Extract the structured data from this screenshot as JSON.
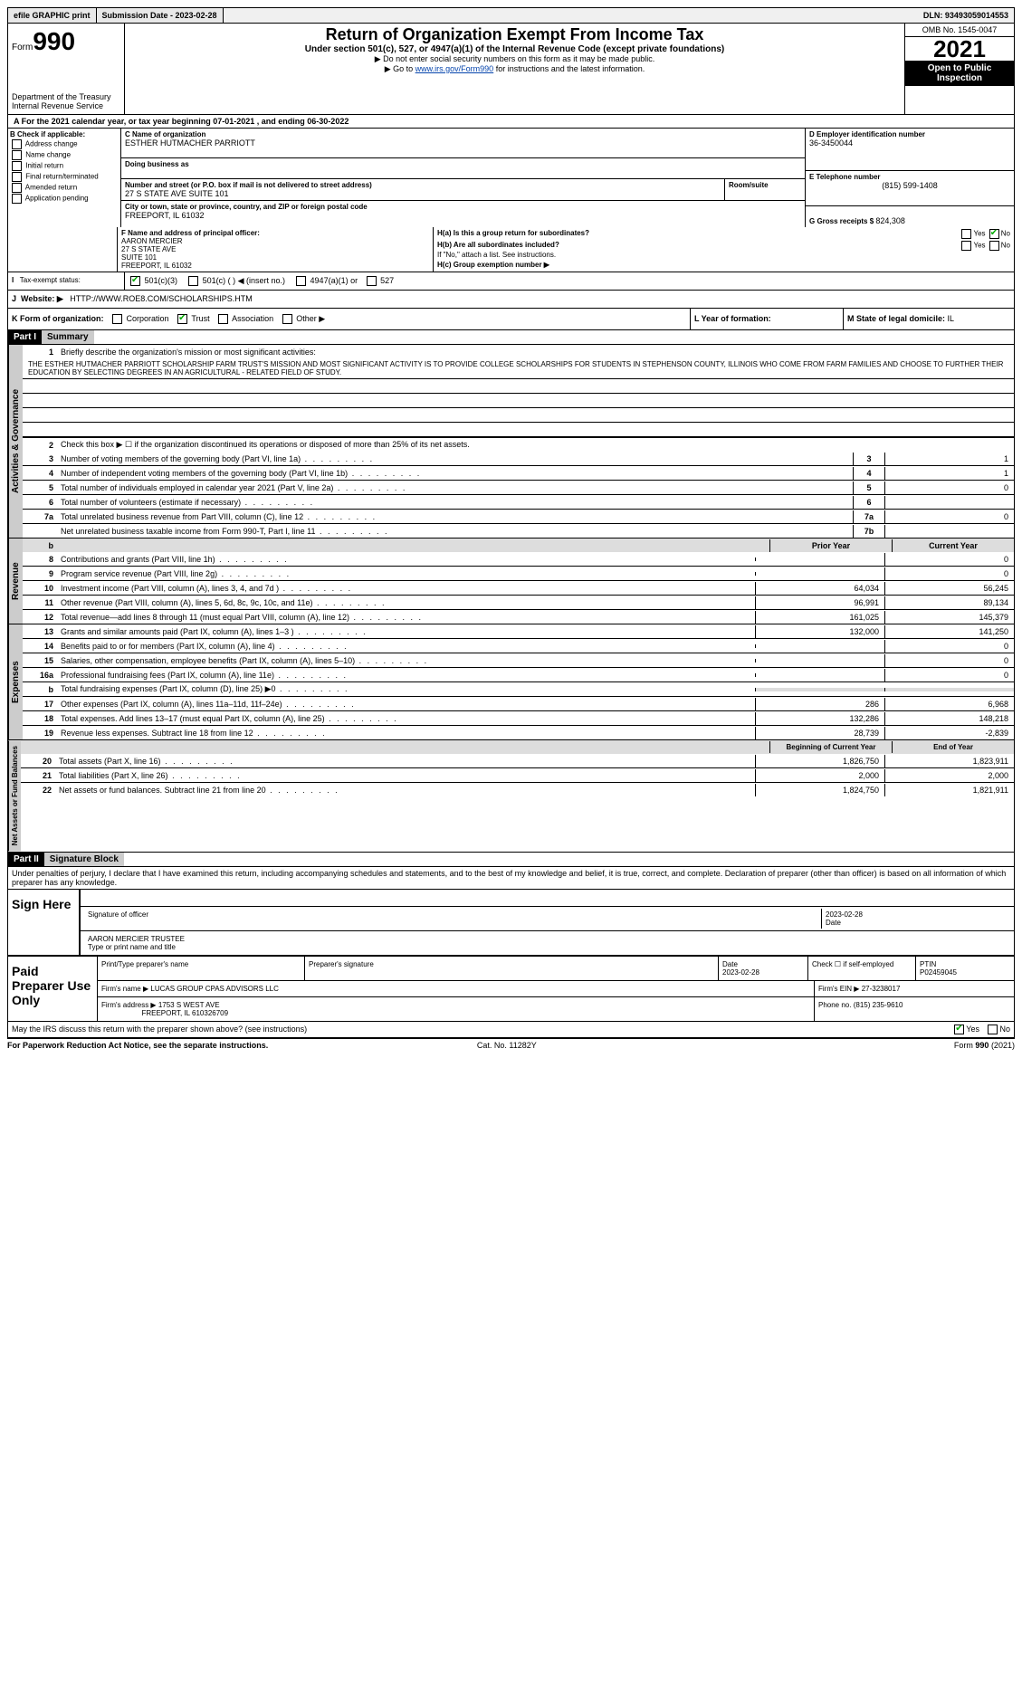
{
  "topbar": {
    "efile": "efile GRAPHIC print",
    "submission": "Submission Date - 2023-02-28",
    "dln": "DLN: 93493059014553"
  },
  "header": {
    "form_word": "Form",
    "form_num": "990",
    "dept": "Department of the Treasury",
    "irs": "Internal Revenue Service",
    "title": "Return of Organization Exempt From Income Tax",
    "subtitle": "Under section 501(c), 527, or 4947(a)(1) of the Internal Revenue Code (except private foundations)",
    "note1": "Do not enter social security numbers on this form as it may be made public.",
    "note2_pre": "Go to ",
    "note2_link": "www.irs.gov/Form990",
    "note2_post": " for instructions and the latest information.",
    "omb": "OMB No. 1545-0047",
    "year": "2021",
    "inspect": "Open to Public Inspection"
  },
  "row_a": "For the 2021 calendar year, or tax year beginning 07-01-2021   , and ending 06-30-2022",
  "box_b": {
    "title": "B Check if applicable:",
    "items": [
      "Address change",
      "Name change",
      "Initial return",
      "Final return/terminated",
      "Amended return",
      "Application pending"
    ]
  },
  "box_c": {
    "lbl_name": "C Name of organization",
    "org": "ESTHER HUTMACHER PARRIOTT",
    "dba_lbl": "Doing business as",
    "dba": "",
    "addr_lbl": "Number and street (or P.O. box if mail is not delivered to street address)",
    "addr": "27 S STATE AVE SUITE 101",
    "room_lbl": "Room/suite",
    "room": "",
    "city_lbl": "City or town, state or province, country, and ZIP or foreign postal code",
    "city": "FREEPORT, IL  61032"
  },
  "box_d": {
    "lbl": "D Employer identification number",
    "val": "36-3450044"
  },
  "box_e": {
    "lbl": "E Telephone number",
    "val": "(815) 599-1408"
  },
  "box_g": {
    "lbl": "G Gross receipts $",
    "val": "824,308"
  },
  "box_f": {
    "lbl": "F  Name and address of principal officer:",
    "name": "AARON MERCIER",
    "l1": "27 S STATE AVE",
    "l2": "SUITE 101",
    "l3": "FREEPORT, IL  61032"
  },
  "box_h": {
    "ha": "H(a)  Is this a group return for subordinates?",
    "hb": "H(b)  Are all subordinates included?",
    "hb_note": "If \"No,\" attach a list. See instructions.",
    "hc": "H(c)  Group exemption number ▶",
    "yes": "Yes",
    "no": "No"
  },
  "box_i": {
    "lbl": "Tax-exempt status:",
    "o1": "501(c)(3)",
    "o2": "501(c) (  ) ◀ (insert no.)",
    "o3": "4947(a)(1) or",
    "o4": "527"
  },
  "box_j": {
    "lbl": "Website: ▶",
    "val": "HTTP://WWW.ROE8.COM/SCHOLARSHIPS.HTM"
  },
  "box_k": {
    "lbl": "K Form of organization:",
    "o1": "Corporation",
    "o2": "Trust",
    "o3": "Association",
    "o4": "Other ▶"
  },
  "box_l": {
    "lbl": "L Year of formation:",
    "val": ""
  },
  "box_m": {
    "lbl": "M State of legal domicile: ",
    "val": "IL"
  },
  "part1": {
    "hdr": "Part I",
    "title": "Summary"
  },
  "governance": {
    "label": "Activities & Governance",
    "q1": "Briefly describe the organization's mission or most significant activities:",
    "mission": "THE ESTHER HUTMACHER PARRIOTT SCHOLARSHIP FARM TRUST'S MISSION AND MOST SIGNIFICANT ACTIVITY IS TO PROVIDE COLLEGE SCHOLARSHIPS FOR STUDENTS IN STEPHENSON COUNTY, ILLINOIS WHO COME FROM FARM FAMILIES AND CHOOSE TO FURTHER THEIR EDUCATION BY SELECTING DEGREES IN AN AGRICULTURAL - RELATED FIELD OF STUDY.",
    "q2": "Check this box ▶ ☐  if the organization discontinued its operations or disposed of more than 25% of its net assets.",
    "rows": [
      {
        "n": "3",
        "d": "Number of voting members of the governing body (Part VI, line 1a)",
        "b": "3",
        "v": "1"
      },
      {
        "n": "4",
        "d": "Number of independent voting members of the governing body (Part VI, line 1b)",
        "b": "4",
        "v": "1"
      },
      {
        "n": "5",
        "d": "Total number of individuals employed in calendar year 2021 (Part V, line 2a)",
        "b": "5",
        "v": "0"
      },
      {
        "n": "6",
        "d": "Total number of volunteers (estimate if necessary)",
        "b": "6",
        "v": ""
      },
      {
        "n": "7a",
        "d": "Total unrelated business revenue from Part VIII, column (C), line 12",
        "b": "7a",
        "v": "0"
      },
      {
        "n": "",
        "d": "Net unrelated business taxable income from Form 990-T, Part I, line 11",
        "b": "7b",
        "v": ""
      }
    ]
  },
  "revenue": {
    "label": "Revenue",
    "hdr_prior": "Prior Year",
    "hdr_curr": "Current Year",
    "rows": [
      {
        "n": "8",
        "d": "Contributions and grants (Part VIII, line 1h)",
        "p": "",
        "c": "0"
      },
      {
        "n": "9",
        "d": "Program service revenue (Part VIII, line 2g)",
        "p": "",
        "c": "0"
      },
      {
        "n": "10",
        "d": "Investment income (Part VIII, column (A), lines 3, 4, and 7d )",
        "p": "64,034",
        "c": "56,245"
      },
      {
        "n": "11",
        "d": "Other revenue (Part VIII, column (A), lines 5, 6d, 8c, 9c, 10c, and 11e)",
        "p": "96,991",
        "c": "89,134"
      },
      {
        "n": "12",
        "d": "Total revenue—add lines 8 through 11 (must equal Part VIII, column (A), line 12)",
        "p": "161,025",
        "c": "145,379"
      }
    ]
  },
  "expenses": {
    "label": "Expenses",
    "rows": [
      {
        "n": "13",
        "d": "Grants and similar amounts paid (Part IX, column (A), lines 1–3 )",
        "p": "132,000",
        "c": "141,250"
      },
      {
        "n": "14",
        "d": "Benefits paid to or for members (Part IX, column (A), line 4)",
        "p": "",
        "c": "0"
      },
      {
        "n": "15",
        "d": "Salaries, other compensation, employee benefits (Part IX, column (A), lines 5–10)",
        "p": "",
        "c": "0"
      },
      {
        "n": "16a",
        "d": "Professional fundraising fees (Part IX, column (A), line 11e)",
        "p": "",
        "c": "0"
      },
      {
        "n": "b",
        "d": "Total fundraising expenses (Part IX, column (D), line 25) ▶0",
        "p": "shade",
        "c": "shade"
      },
      {
        "n": "17",
        "d": "Other expenses (Part IX, column (A), lines 11a–11d, 11f–24e)",
        "p": "286",
        "c": "6,968"
      },
      {
        "n": "18",
        "d": "Total expenses. Add lines 13–17 (must equal Part IX, column (A), line 25)",
        "p": "132,286",
        "c": "148,218"
      },
      {
        "n": "19",
        "d": "Revenue less expenses. Subtract line 18 from line 12",
        "p": "28,739",
        "c": "-2,839"
      }
    ]
  },
  "netassets": {
    "label": "Net Assets or Fund Balances",
    "hdr_beg": "Beginning of Current Year",
    "hdr_end": "End of Year",
    "rows": [
      {
        "n": "20",
        "d": "Total assets (Part X, line 16)",
        "p": "1,826,750",
        "c": "1,823,911"
      },
      {
        "n": "21",
        "d": "Total liabilities (Part X, line 26)",
        "p": "2,000",
        "c": "2,000"
      },
      {
        "n": "22",
        "d": "Net assets or fund balances. Subtract line 21 from line 20",
        "p": "1,824,750",
        "c": "1,821,911"
      }
    ]
  },
  "part2": {
    "hdr": "Part II",
    "title": "Signature Block"
  },
  "penalties": "Under penalties of perjury, I declare that I have examined this return, including accompanying schedules and statements, and to the best of my knowledge and belief, it is true, correct, and complete. Declaration of preparer (other than officer) is based on all information of which preparer has any knowledge.",
  "sign": {
    "here": "Sign Here",
    "sig_lbl": "Signature of officer",
    "date_lbl": "Date",
    "date": "2023-02-28",
    "name": "AARON MERCIER  TRUSTEE",
    "name_lbl": "Type or print name and title"
  },
  "prep": {
    "left": "Paid Preparer Use Only",
    "h1": "Print/Type preparer's name",
    "h2": "Preparer's signature",
    "h3": "Date",
    "h4": "Check ☐ if self-employed",
    "h5": "PTIN",
    "date": "2023-02-28",
    "ptin": "P02459045",
    "firm_lbl": "Firm's name  ▶",
    "firm": "LUCAS GROUP CPAS ADVISORS LLC",
    "ein_lbl": "Firm's EIN ▶",
    "ein": "27-3238017",
    "addr_lbl": "Firm's address ▶",
    "addr1": "1753 S WEST AVE",
    "addr2": "FREEPORT, IL  610326709",
    "phone_lbl": "Phone no.",
    "phone": "(815) 235-9610"
  },
  "discuss": {
    "q": "May the IRS discuss this return with the preparer shown above? (see instructions)",
    "yes": "Yes",
    "no": "No"
  },
  "footer": {
    "left": "For Paperwork Reduction Act Notice, see the separate instructions.",
    "mid": "Cat. No. 11282Y",
    "right": "Form 990 (2021)"
  }
}
